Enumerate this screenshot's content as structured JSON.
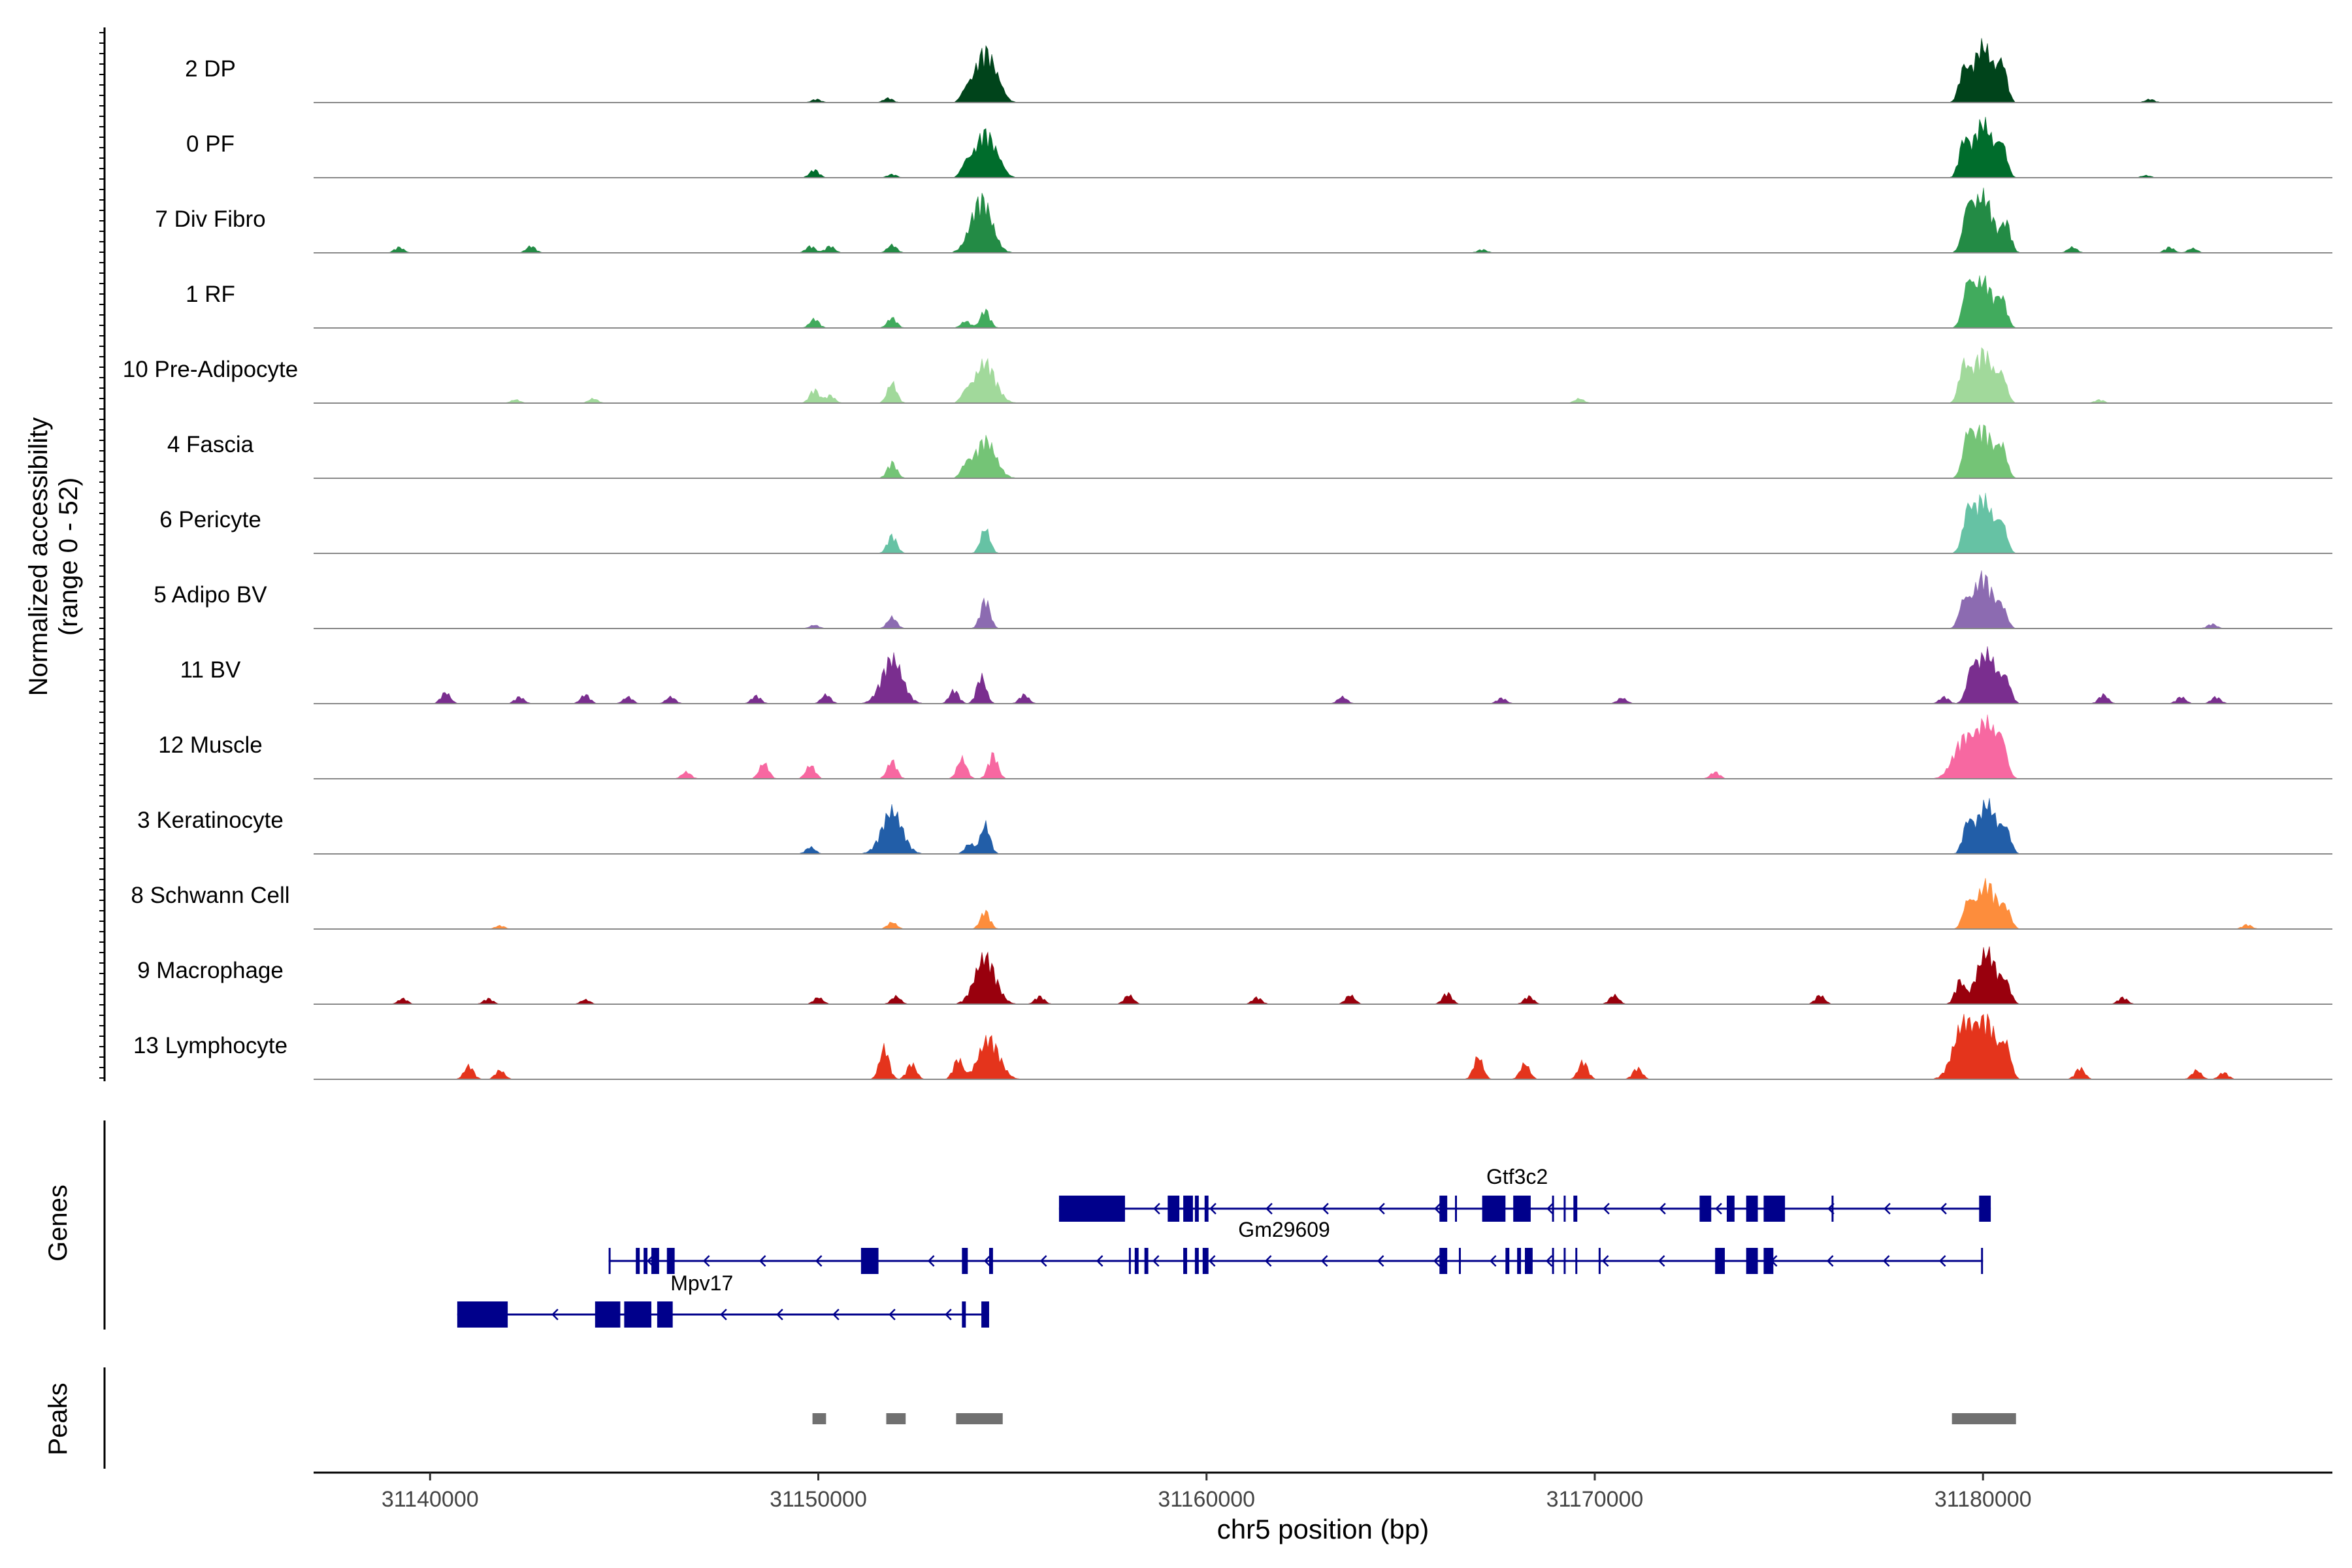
{
  "chart_data": {
    "type": "area",
    "chrom": "chr5",
    "xlabel": "chr5 position (bp)",
    "ylabel_line1": "Normalized accessibility",
    "ylabel_line2": "(range 0 - 52)",
    "yrange": [
      0,
      52
    ],
    "xlim": [
      31137000,
      31189000
    ],
    "xticks": [
      31140000,
      31150000,
      31160000,
      31170000,
      31180000
    ],
    "xtick_labels": [
      "31140000",
      "31150000",
      "31160000",
      "31170000",
      "31180000"
    ],
    "genes_label": "Genes",
    "peaks_label": "Peaks",
    "tracks": [
      {
        "name": "2 DP",
        "color": "#00441b",
        "peaks": [
          [
            31149950,
            3
          ],
          [
            31151800,
            4
          ],
          [
            31153800,
            8
          ],
          [
            31154300,
            46
          ],
          [
            31154700,
            4
          ],
          [
            31179500,
            25
          ],
          [
            31180000,
            50
          ],
          [
            31180500,
            30
          ],
          [
            31184300,
            3
          ]
        ]
      },
      {
        "name": "0 PF",
        "color": "#006d2c",
        "peaks": [
          [
            31149900,
            7
          ],
          [
            31151900,
            3
          ],
          [
            31153800,
            10
          ],
          [
            31154300,
            40
          ],
          [
            31154700,
            4
          ],
          [
            31179500,
            28
          ],
          [
            31180000,
            48
          ],
          [
            31180500,
            25
          ],
          [
            31184200,
            2
          ]
        ]
      },
      {
        "name": "7 Div Fibro",
        "color": "#238b45",
        "peaks": [
          [
            31139200,
            5
          ],
          [
            31142600,
            6
          ],
          [
            31149800,
            6
          ],
          [
            31150300,
            6
          ],
          [
            31151900,
            7
          ],
          [
            31154200,
            48
          ],
          [
            31167100,
            3
          ],
          [
            31179600,
            30
          ],
          [
            31180000,
            50
          ],
          [
            31180600,
            25
          ],
          [
            31182300,
            5
          ],
          [
            31184800,
            5
          ],
          [
            31185400,
            4
          ]
        ]
      },
      {
        "name": "1 RF",
        "color": "#41ab5d",
        "peaks": [
          [
            31149900,
            8
          ],
          [
            31151900,
            9
          ],
          [
            31153800,
            6
          ],
          [
            31154300,
            16
          ],
          [
            31179600,
            30
          ],
          [
            31180000,
            42
          ],
          [
            31180500,
            22
          ]
        ]
      },
      {
        "name": "10 Pre-Adipocyte",
        "color": "#a1d99b",
        "peaks": [
          [
            31142200,
            3
          ],
          [
            31144200,
            4
          ],
          [
            31149900,
            12
          ],
          [
            31150300,
            7
          ],
          [
            31151900,
            18
          ],
          [
            31153800,
            8
          ],
          [
            31154300,
            36
          ],
          [
            31169600,
            4
          ],
          [
            31179500,
            30
          ],
          [
            31180000,
            45
          ],
          [
            31180500,
            20
          ],
          [
            31183000,
            3
          ]
        ]
      },
      {
        "name": "4 Fascia",
        "color": "#74c476",
        "peaks": [
          [
            31151900,
            14
          ],
          [
            31153800,
            10
          ],
          [
            31154300,
            34
          ],
          [
            31179600,
            30
          ],
          [
            31180000,
            44
          ],
          [
            31180500,
            24
          ]
        ]
      },
      {
        "name": "6 Pericyte",
        "color": "#66c2a4",
        "peaks": [
          [
            31151900,
            16
          ],
          [
            31154300,
            22
          ],
          [
            31179600,
            28
          ],
          [
            31180000,
            48
          ],
          [
            31180500,
            22
          ]
        ]
      },
      {
        "name": "5 Adipo BV",
        "color": "#8c6bb1",
        "peaks": [
          [
            31149900,
            3
          ],
          [
            31151900,
            10
          ],
          [
            31154300,
            26
          ],
          [
            31179500,
            20
          ],
          [
            31180000,
            46
          ],
          [
            31180500,
            15
          ],
          [
            31185900,
            4
          ]
        ]
      },
      {
        "name": "11 BV",
        "color": "#7a2e8f",
        "peaks": [
          [
            31140400,
            10
          ],
          [
            31142300,
            6
          ],
          [
            31144000,
            8
          ],
          [
            31145100,
            6
          ],
          [
            31146200,
            6
          ],
          [
            31148400,
            7
          ],
          [
            31150200,
            8
          ],
          [
            31151900,
            40
          ],
          [
            31153500,
            12
          ],
          [
            31154200,
            24
          ],
          [
            31155300,
            8
          ],
          [
            31163500,
            6
          ],
          [
            31167600,
            5
          ],
          [
            31170700,
            5
          ],
          [
            31179000,
            6
          ],
          [
            31179700,
            22
          ],
          [
            31180100,
            44
          ],
          [
            31180600,
            18
          ],
          [
            31183100,
            8
          ],
          [
            31185100,
            6
          ],
          [
            31186000,
            6
          ]
        ]
      },
      {
        "name": "12 Muscle",
        "color": "#f768a1",
        "peaks": [
          [
            31146600,
            6
          ],
          [
            31148600,
            14
          ],
          [
            31149800,
            12
          ],
          [
            31151900,
            16
          ],
          [
            31153700,
            18
          ],
          [
            31154500,
            22
          ],
          [
            31173100,
            6
          ],
          [
            31179500,
            34
          ],
          [
            31180100,
            48
          ],
          [
            31180500,
            24
          ]
        ]
      },
      {
        "name": "3 Keratinocyte",
        "color": "#225ea8",
        "peaks": [
          [
            31149800,
            6
          ],
          [
            31151900,
            38
          ],
          [
            31153900,
            9
          ],
          [
            31154300,
            26
          ],
          [
            31179600,
            24
          ],
          [
            31180100,
            44
          ],
          [
            31180600,
            18
          ]
        ]
      },
      {
        "name": "8 Schwann Cell",
        "color": "#fd8d3c",
        "peaks": [
          [
            31141800,
            3
          ],
          [
            31151900,
            6
          ],
          [
            31154300,
            16
          ],
          [
            31179600,
            20
          ],
          [
            31180100,
            40
          ],
          [
            31180600,
            15
          ],
          [
            31186800,
            4
          ]
        ]
      },
      {
        "name": "9 Macrophage",
        "color": "#99000d",
        "peaks": [
          [
            31139300,
            5
          ],
          [
            31141500,
            5
          ],
          [
            31144000,
            4
          ],
          [
            31150000,
            6
          ],
          [
            31152000,
            7
          ],
          [
            31154300,
            42
          ],
          [
            31155700,
            7
          ],
          [
            31158000,
            8
          ],
          [
            31161300,
            6
          ],
          [
            31163700,
            8
          ],
          [
            31166200,
            10
          ],
          [
            31168300,
            7
          ],
          [
            31170500,
            8
          ],
          [
            31175800,
            8
          ],
          [
            31179400,
            20
          ],
          [
            31180100,
            46
          ],
          [
            31180600,
            15
          ],
          [
            31183600,
            6
          ]
        ]
      },
      {
        "name": "13 Lymphocyte",
        "color": "#e4341c",
        "peaks": [
          [
            31141000,
            12
          ],
          [
            31141800,
            8
          ],
          [
            31151700,
            28
          ],
          [
            31152400,
            14
          ],
          [
            31153600,
            18
          ],
          [
            31154400,
            36
          ],
          [
            31167000,
            20
          ],
          [
            31168200,
            14
          ],
          [
            31169700,
            16
          ],
          [
            31171100,
            10
          ],
          [
            31179500,
            48
          ],
          [
            31180100,
            50
          ],
          [
            31180600,
            26
          ],
          [
            31182500,
            10
          ],
          [
            31185500,
            8
          ],
          [
            31186200,
            6
          ]
        ]
      }
    ],
    "genes": [
      {
        "name": "Gtf3c2",
        "start": 31156200,
        "end": 31180200,
        "strand": "-",
        "label_pos": 31168000,
        "exons": [
          [
            31156200,
            31157900
          ],
          [
            31159000,
            31159300
          ],
          [
            31159400,
            31159650
          ],
          [
            31159700,
            31159800
          ],
          [
            31159950,
            31160050
          ],
          [
            31166000,
            31166200
          ],
          [
            31166400,
            31166450
          ],
          [
            31167100,
            31167700
          ],
          [
            31167900,
            31168350
          ],
          [
            31168900,
            31168950
          ],
          [
            31169200,
            31169250
          ],
          [
            31169450,
            31169550
          ],
          [
            31172700,
            31173000
          ],
          [
            31173400,
            31173600
          ],
          [
            31173900,
            31174200
          ],
          [
            31174350,
            31174900
          ],
          [
            31176100,
            31176150
          ],
          [
            31179900,
            31180200
          ]
        ]
      },
      {
        "name": "Gm29609",
        "start": 31144600,
        "end": 31180000,
        "strand": "-",
        "label_pos": 31162000,
        "exons": [
          [
            31144600,
            31144650
          ],
          [
            31145300,
            31145400
          ],
          [
            31145500,
            31145600
          ],
          [
            31145700,
            31145900
          ],
          [
            31146100,
            31146300
          ],
          [
            31151100,
            31151550
          ],
          [
            31153700,
            31153850
          ],
          [
            31154400,
            31154500
          ],
          [
            31158000,
            31158050
          ],
          [
            31158150,
            31158250
          ],
          [
            31158400,
            31158500
          ],
          [
            31159400,
            31159500
          ],
          [
            31159700,
            31159800
          ],
          [
            31159900,
            31160050
          ],
          [
            31166000,
            31166200
          ],
          [
            31166500,
            31166550
          ],
          [
            31167700,
            31167800
          ],
          [
            31168000,
            31168100
          ],
          [
            31168200,
            31168400
          ],
          [
            31168900,
            31168950
          ],
          [
            31169200,
            31169250
          ],
          [
            31169500,
            31169550
          ],
          [
            31170100,
            31170150
          ],
          [
            31173100,
            31173350
          ],
          [
            31173900,
            31174200
          ],
          [
            31174350,
            31174600
          ],
          [
            31179950,
            31180000
          ]
        ]
      },
      {
        "name": "Mpv17",
        "start": 31140700,
        "end": 31154400,
        "strand": "-",
        "label_pos": 31147000,
        "exons": [
          [
            31140700,
            31142000
          ],
          [
            31144250,
            31144900
          ],
          [
            31145000,
            31145700
          ],
          [
            31145850,
            31146250
          ],
          [
            31153700,
            31153800
          ],
          [
            31154200,
            31154400
          ]
        ]
      }
    ],
    "peaks": [
      [
        31149850,
        31150200
      ],
      [
        31151750,
        31152250
      ],
      [
        31153550,
        31154750
      ],
      [
        31179200,
        31180850
      ]
    ]
  }
}
